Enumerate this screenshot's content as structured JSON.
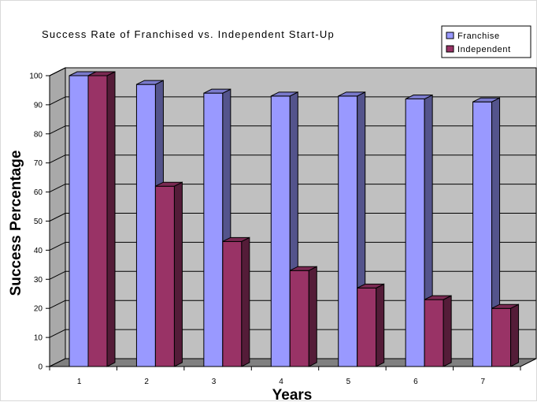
{
  "chart_data": {
    "type": "bar",
    "title": "Success Rate of Franchised vs. Independent Start-Up",
    "xlabel": "Years",
    "ylabel": "Success Percentage",
    "categories": [
      "1",
      "2",
      "3",
      "4",
      "5",
      "6",
      "7"
    ],
    "series": [
      {
        "name": "Franchise",
        "values": [
          100,
          97,
          94,
          93,
          93,
          92,
          91
        ],
        "color": "#9999ff"
      },
      {
        "name": "Independent",
        "values": [
          100,
          62,
          43,
          33,
          27,
          23,
          20
        ],
        "color": "#993366"
      }
    ],
    "yticks": [
      "0",
      "10",
      "20",
      "30",
      "40",
      "50",
      "60",
      "70",
      "80",
      "90",
      "100"
    ],
    "ylim": [
      0,
      100
    ],
    "grid": true,
    "legend_position": "top-right",
    "style": "3d-column",
    "wall_color": "#c0c0c0",
    "floor_color": "#808080"
  }
}
